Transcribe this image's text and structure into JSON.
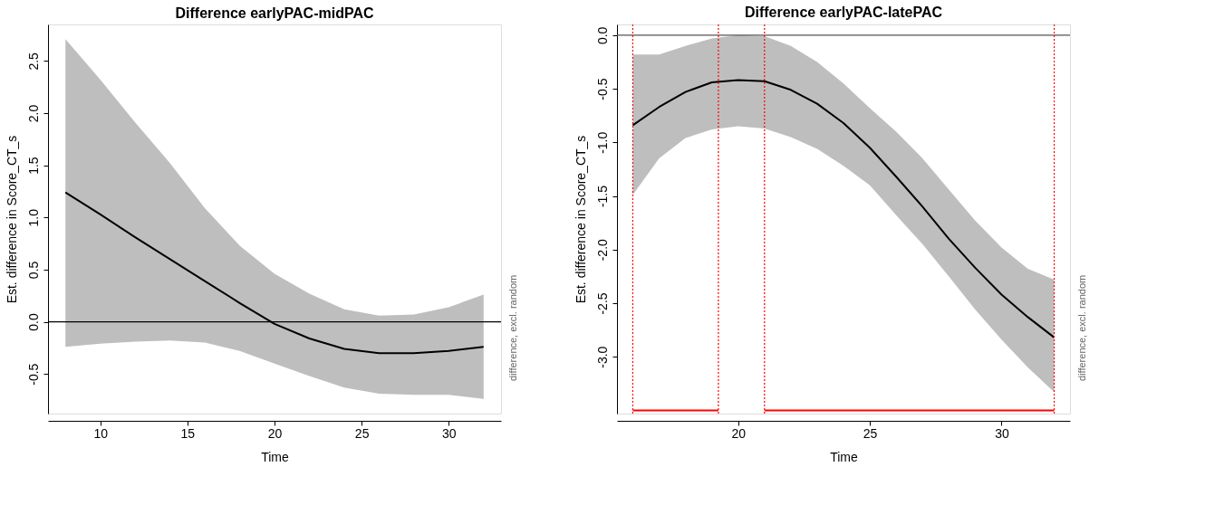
{
  "chart_data": [
    {
      "type": "line",
      "title": "Difference earlyPAC-midPAC",
      "xlabel": "Time",
      "ylabel": "Est. difference in Score_CT_s",
      "x": [
        8,
        10,
        12,
        14,
        16,
        18,
        20,
        22,
        24,
        26,
        28,
        30,
        32
      ],
      "series": [
        {
          "color": "#000000",
          "values": [
            1.24,
            1.03,
            0.81,
            0.6,
            0.39,
            0.18,
            -0.02,
            -0.16,
            -0.26,
            -0.3,
            -0.3,
            -0.28,
            -0.24
          ],
          "lower": [
            -0.24,
            -0.21,
            -0.19,
            -0.18,
            -0.2,
            -0.28,
            -0.4,
            -0.52,
            -0.63,
            -0.69,
            -0.7,
            -0.7,
            -0.74
          ],
          "upper": [
            2.71,
            2.32,
            1.91,
            1.52,
            1.09,
            0.73,
            0.46,
            0.27,
            0.12,
            0.06,
            0.07,
            0.14,
            0.26
          ]
        }
      ],
      "xlim": [
        7,
        33
      ],
      "xticks": [
        10,
        15,
        20,
        25,
        30
      ],
      "ylim": [
        -0.88,
        2.85
      ],
      "yticks": [
        {
          "value": -0.5,
          "label": "-0.5"
        },
        {
          "value": 0,
          "label": "0.0"
        },
        {
          "value": 0.5,
          "label": "0.5"
        },
        {
          "value": 1,
          "label": "1.0"
        },
        {
          "value": 1.5,
          "label": "1.5"
        },
        {
          "value": 2,
          "label": "2.0"
        },
        {
          "value": 2.5,
          "label": "2.5"
        }
      ],
      "ref_lines": [
        {
          "axis": "y",
          "value": 0,
          "color": "#000000",
          "line_style": "solid"
        }
      ],
      "annotations": [
        "difference, excl. random"
      ],
      "grid": false
    },
    {
      "type": "line",
      "title": "Difference earlyPAC-latePAC",
      "xlabel": "Time",
      "ylabel": "Est. difference in Score_CT_s",
      "x": [
        16,
        17,
        18,
        19,
        20,
        21,
        22,
        23,
        24,
        25,
        26,
        27,
        28,
        29,
        30,
        31,
        32
      ],
      "series": [
        {
          "color": "#000000",
          "values": [
            -0.84,
            -0.67,
            -0.53,
            -0.44,
            -0.42,
            -0.43,
            -0.51,
            -0.64,
            -0.82,
            -1.05,
            -1.32,
            -1.6,
            -1.9,
            -2.17,
            -2.42,
            -2.63,
            -2.82
          ],
          "lower": [
            -1.49,
            -1.15,
            -0.96,
            -0.88,
            -0.85,
            -0.87,
            -0.95,
            -1.06,
            -1.22,
            -1.4,
            -1.68,
            -1.95,
            -2.25,
            -2.56,
            -2.84,
            -3.1,
            -3.33
          ],
          "upper": [
            -0.18,
            -0.18,
            -0.1,
            -0.03,
            0.0,
            -0.01,
            -0.1,
            -0.25,
            -0.45,
            -0.68,
            -0.9,
            -1.15,
            -1.44,
            -1.73,
            -1.98,
            -2.18,
            -2.28
          ]
        },
        {
          "color": "#ff0000",
          "x": [
            16,
            19.25
          ],
          "values": [
            -3.5,
            -3.5
          ]
        },
        {
          "color": "#ff0000",
          "x": [
            21,
            32
          ],
          "values": [
            -3.5,
            -3.5
          ]
        }
      ],
      "xlim": [
        15.4,
        32.6
      ],
      "xticks": [
        20,
        25,
        30
      ],
      "ylim": [
        -3.53,
        0.1
      ],
      "yticks": [
        {
          "value": -3,
          "label": "-3.0"
        },
        {
          "value": -2.5,
          "label": "-2.5"
        },
        {
          "value": -2,
          "label": "-2.0"
        },
        {
          "value": -1.5,
          "label": "-1.5"
        },
        {
          "value": -1,
          "label": "-1.0"
        },
        {
          "value": -0.5,
          "label": "-0.5"
        },
        {
          "value": 0,
          "label": "0.0"
        }
      ],
      "ref_lines": [
        {
          "axis": "y",
          "value": 0,
          "color": "#555555",
          "line_style": "solid"
        },
        {
          "axis": "x",
          "value": 16,
          "color": "#ff0000",
          "line_style": "dotted"
        },
        {
          "axis": "x",
          "value": 19.25,
          "color": "#ff0000",
          "line_style": "dotted"
        },
        {
          "axis": "x",
          "value": 21,
          "color": "#ff0000",
          "line_style": "dotted"
        },
        {
          "axis": "x",
          "value": 32,
          "color": "#ff0000",
          "line_style": "dotted"
        }
      ],
      "annotations": [
        "difference, excl. random"
      ],
      "grid": false
    }
  ]
}
